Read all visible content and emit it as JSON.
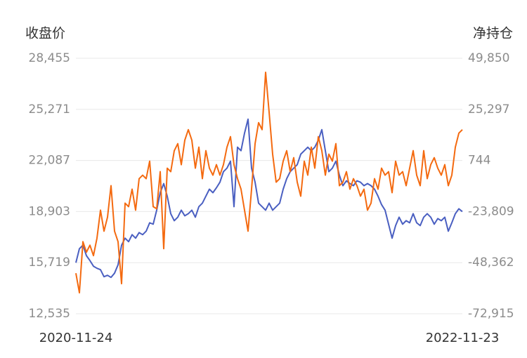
{
  "chart_data": {
    "type": "line",
    "y_label": "收盘价",
    "y2_label": "净持仓",
    "categories": [
      "2020-11-24",
      null,
      null,
      null,
      null,
      null,
      null,
      null,
      null,
      null,
      null,
      null,
      null,
      null,
      null,
      null,
      null,
      null,
      null,
      null,
      null,
      null,
      null,
      null,
      null,
      null,
      null,
      null,
      null,
      null,
      null,
      null,
      null,
      null,
      null,
      null,
      null,
      null,
      null,
      null,
      null,
      null,
      null,
      null,
      null,
      null,
      null,
      null,
      null,
      null,
      null,
      null,
      null,
      null,
      null,
      null,
      null,
      null,
      null,
      null,
      null,
      null,
      null,
      null,
      null,
      null,
      null,
      null,
      null,
      null,
      null,
      null,
      null,
      null,
      null,
      null,
      null,
      null,
      null,
      null,
      null,
      null,
      null,
      null,
      null,
      null,
      null,
      null,
      null,
      null,
      null,
      null,
      null,
      null,
      null,
      null,
      null,
      null,
      null,
      null,
      null,
      null,
      null,
      null,
      null,
      null,
      null,
      null,
      null,
      null,
      "2022-11-23"
    ],
    "series": [
      {
        "color": "#4a5fc1",
        "axis": "y",
        "values": [
          15718,
          16590,
          16808,
          16154,
          15849,
          15500,
          15369,
          15282,
          14846,
          14933,
          14802,
          15064,
          15587,
          16808,
          17245,
          17027,
          17463,
          17245,
          17594,
          17463,
          17681,
          18204,
          18117,
          18989,
          20080,
          20647,
          19862,
          18771,
          18335,
          18553,
          18989,
          18640,
          18771,
          18989,
          18553,
          19208,
          19426,
          19862,
          20298,
          20080,
          20385,
          20734,
          21389,
          21607,
          22043,
          19208,
          22915,
          22697,
          23788,
          24660,
          21607,
          20734,
          19426,
          19208,
          18989,
          19426,
          18989,
          19208,
          19426,
          20298,
          20952,
          21389,
          21607,
          21825,
          22479,
          22697,
          22915,
          22697,
          22915,
          23351,
          24006,
          22697,
          21389,
          21607,
          22043,
          21170,
          20516,
          20821,
          20647,
          20516,
          20821,
          20734,
          20516,
          20647,
          20516,
          20298,
          19862,
          19338,
          18989,
          18117,
          17245,
          18030,
          18553,
          18117,
          18335,
          18204,
          18771,
          18204,
          18030,
          18553,
          18771,
          18553,
          18117,
          18466,
          18335,
          18553,
          17681,
          18204,
          18771,
          19077,
          18902
        ]
      },
      {
        "color": "#f46a10",
        "axis": "y2",
        "values": [
          -53406,
          -62824,
          -38271,
          -43316,
          -39953,
          -44998,
          -36589,
          -23136,
          -33226,
          -26499,
          -11364,
          -33226,
          -38271,
          -58451,
          -19772,
          -21454,
          -13046,
          -23136,
          -8000,
          -6319,
          -8000,
          408,
          -21454,
          -22463,
          -4637,
          -41634,
          -2955,
          -4637,
          5453,
          8817,
          -1274,
          10498,
          15543,
          10498,
          -2955,
          7135,
          -8000,
          5453,
          -2955,
          -6319,
          -1274,
          -6319,
          -1274,
          7135,
          12180,
          -1274,
          -8000,
          -13046,
          -23136,
          -33226,
          -13046,
          8817,
          18907,
          15543,
          43123,
          23952,
          3771,
          -9682,
          -8000,
          408,
          5453,
          -4637,
          2090,
          -9682,
          -16409,
          408,
          -6319,
          7135,
          -2955,
          12180,
          5453,
          -6319,
          3771,
          408,
          8817,
          -11364,
          -9682,
          -4637,
          -13046,
          -8000,
          -11364,
          -16409,
          -13046,
          -23136,
          -19772,
          -8000,
          -13046,
          -2955,
          -6319,
          -4637,
          -14727,
          408,
          -6319,
          -4637,
          -11364,
          -2955,
          5453,
          -6319,
          -11364,
          5453,
          -8000,
          -1274,
          2090,
          -2955,
          -6319,
          -1274,
          -11364,
          -6319,
          7135,
          13862,
          15543
        ]
      }
    ],
    "ylim": [
      12535,
      28455
    ],
    "yticks": [
      {
        "value": 12535,
        "label": "12,535"
      },
      {
        "value": 15719,
        "label": "15,719"
      },
      {
        "value": 18903,
        "label": "18,903"
      },
      {
        "value": 22087,
        "label": "22,087"
      },
      {
        "value": 25271,
        "label": "25,271"
      },
      {
        "value": 28455,
        "label": "28,455"
      }
    ],
    "y2lim": [
      -72915,
      49850
    ],
    "y2ticks": [
      {
        "value": -72915,
        "label": "-72,915"
      },
      {
        "value": -48362,
        "label": "-48,362"
      },
      {
        "value": -23809,
        "label": "-23,809"
      },
      744,
      {
        "value": 25297,
        "label": "25,297"
      },
      {
        "value": 49850,
        "label": "49,850"
      }
    ],
    "grid": true
  }
}
